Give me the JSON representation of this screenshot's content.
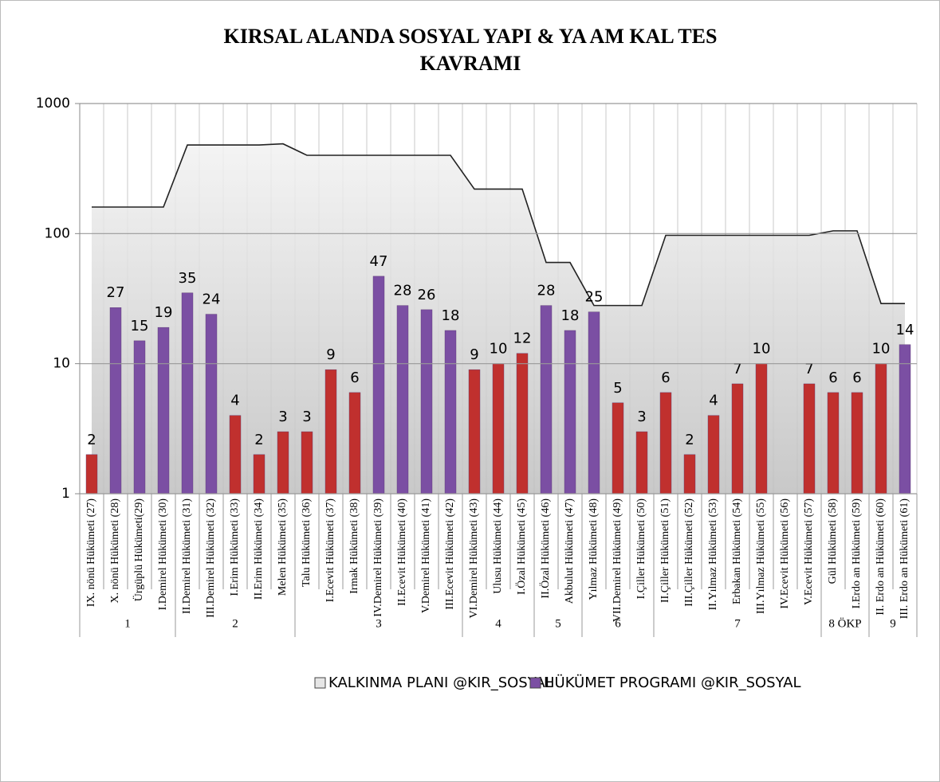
{
  "chart_data": {
    "type": "bar",
    "title": [
      "KIRSAL ALANDA SOSYAL YAPI & YA  AM KAL  TES",
      "KAVRAMI"
    ],
    "categories": [
      "IX. nönü Hükümeti (27)",
      "X. nönü Hükümeti (28)",
      "Ürgüplü Hükümeti(29)",
      "I.Demirel Hükümeti (30)",
      "II.Demirel Hükümeti (31)",
      "III.Demirel Hükümeti (32)",
      "I.Erim Hükümeti (33)",
      "II.Erim Hükümeti (34)",
      "Melen Hükümeti (35)",
      "Talu Hükümeti (36)",
      "I.Ecevit Hükümeti (37)",
      "Irmak Hükümeti (38)",
      "IV.Demirel Hükümeti (39)",
      "II.Ecevit Hükümeti (40)",
      "V.Demirel Hükümeti (41)",
      "III.Ecevit Hükümeti (42)",
      "VI.Demirel Hükümeti (43)",
      "Ulusu Hükümeti (44)",
      "I.Özal Hükümeti (45)",
      "II.Özal Hükümeti (46)",
      "Akbulut Hükümeti (47)",
      "Yılmaz Hükümeti (48)",
      "VII.Demirel Hükümeti (49)",
      "I.Çiller Hükümeti (50)",
      "II.Çiller Hükümeti (51)",
      "III.Çiller Hükümeti (52)",
      "II.Yılmaz Hükümeti (53)",
      "Erbakan Hükümeti (54)",
      "III.Yılmaz Hükümeti (55)",
      "IV.Ecevit Hükümeti (56)",
      "V.Ecevit Hükümeti (57)",
      "Gül Hükümeti (58)",
      "I.Erdo an Hükümeti (59)",
      "II. Erdo an Hükümeti (60)",
      "III. Erdo an Hükümeti (61)"
    ],
    "category_groups": [
      "1",
      "1",
      "1",
      "1",
      "2",
      "2",
      "2",
      "2",
      "2",
      "3",
      "3",
      "3",
      "3",
      "3",
      "3",
      "3",
      "4",
      "4",
      "4",
      "5",
      "5",
      "6",
      "6",
      "6",
      "7",
      "7",
      "7",
      "7",
      "7",
      "7",
      "7",
      "8 ÖKP",
      "8 ÖKP",
      "9",
      "9"
    ],
    "series": [
      {
        "name": "KALKINMA PLANI @KIR_SOSYAL",
        "kind": "area",
        "color": "#d9d9d9",
        "values": [
          160,
          160,
          160,
          160,
          480,
          480,
          480,
          480,
          490,
          400,
          400,
          400,
          400,
          400,
          400,
          400,
          220,
          220,
          220,
          60,
          60,
          28,
          28,
          28,
          97,
          97,
          97,
          97,
          97,
          97,
          97,
          105,
          105,
          29,
          29
        ]
      },
      {
        "name": "HÜKÜMET PROGRAMI @KIR_SOSYAL",
        "kind": "bar",
        "color": "#7b4fa3",
        "values": [
          2,
          27,
          15,
          19,
          35,
          24,
          4,
          2,
          3,
          3,
          9,
          6,
          47,
          28,
          26,
          18,
          9,
          10,
          12,
          28,
          18,
          25,
          5,
          3,
          6,
          2,
          4,
          7,
          10,
          null,
          7,
          6,
          6,
          10,
          14
        ],
        "point_colors": [
          "#c0302e",
          "#7b4fa3",
          "#7b4fa3",
          "#7b4fa3",
          "#7b4fa3",
          "#7b4fa3",
          "#c0302e",
          "#c0302e",
          "#c0302e",
          "#c0302e",
          "#c0302e",
          "#c0302e",
          "#7b4fa3",
          "#7b4fa3",
          "#7b4fa3",
          "#7b4fa3",
          "#c0302e",
          "#c0302e",
          "#c0302e",
          "#7b4fa3",
          "#7b4fa3",
          "#7b4fa3",
          "#c0302e",
          "#c0302e",
          "#c0302e",
          "#c0302e",
          "#c0302e",
          "#c0302e",
          "#c0302e",
          "#c0302e",
          "#c0302e",
          "#c0302e",
          "#c0302e",
          "#c0302e",
          "#7b4fa3"
        ]
      }
    ],
    "log_scale": true,
    "ylim": [
      1,
      1000
    ],
    "yticks": [
      1,
      10,
      100,
      1000
    ],
    "grid": true,
    "legend": "bottom"
  }
}
